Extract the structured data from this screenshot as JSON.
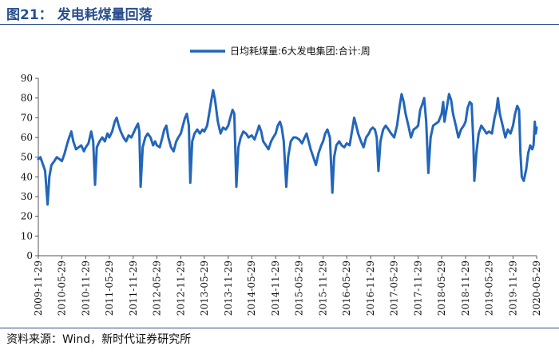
{
  "figure": {
    "title": "图21：  发电耗煤量回落",
    "source": "资料来源：Wind，新时代证券研究所"
  },
  "colors": {
    "series": "#2266bb",
    "axis": "#555555",
    "accent": "#2a4f8f"
  },
  "chart_data": {
    "type": "line",
    "title": "",
    "xlabel": "",
    "ylabel": "",
    "ylim": [
      0,
      90
    ],
    "yticks": [
      0,
      10,
      20,
      30,
      40,
      50,
      60,
      70,
      80,
      90
    ],
    "grid": false,
    "legend": "top-center",
    "xticks": [
      "2009-11-29",
      "2010-05-29",
      "2010-11-29",
      "2011-05-29",
      "2011-11-29",
      "2012-05-29",
      "2012-11-29",
      "2013-05-29",
      "2013-11-29",
      "2014-05-29",
      "2014-11-29",
      "2015-05-29",
      "2015-11-29",
      "2016-05-29",
      "2016-11-29",
      "2017-05-29",
      "2017-11-29",
      "2018-05-29",
      "2018-11-29",
      "2019-05-29",
      "2019-11-29",
      "2020-05-29"
    ],
    "series": [
      {
        "name": "日均耗煤量:6大发电集团:合计:周",
        "points": [
          [
            "2009-11-29",
            49
          ],
          [
            "2009-12-15",
            50
          ],
          [
            "2010-01-05",
            46
          ],
          [
            "2010-01-20",
            43
          ],
          [
            "2010-02-08",
            26
          ],
          [
            "2010-02-22",
            40
          ],
          [
            "2010-03-10",
            46
          ],
          [
            "2010-04-01",
            48
          ],
          [
            "2010-04-20",
            50
          ],
          [
            "2010-05-10",
            49
          ],
          [
            "2010-05-29",
            48
          ],
          [
            "2010-06-20",
            52
          ],
          [
            "2010-07-10",
            57
          ],
          [
            "2010-07-25",
            60
          ],
          [
            "2010-08-10",
            63
          ],
          [
            "2010-08-25",
            58
          ],
          [
            "2010-09-15",
            54
          ],
          [
            "2010-10-05",
            55
          ],
          [
            "2010-10-25",
            56
          ],
          [
            "2010-11-15",
            53
          ],
          [
            "2010-11-29",
            55
          ],
          [
            "2010-12-20",
            57
          ],
          [
            "2011-01-10",
            63
          ],
          [
            "2011-01-25",
            58
          ],
          [
            "2011-02-08",
            36
          ],
          [
            "2011-02-22",
            55
          ],
          [
            "2011-03-15",
            58
          ],
          [
            "2011-04-05",
            60
          ],
          [
            "2011-04-25",
            58
          ],
          [
            "2011-05-15",
            62
          ],
          [
            "2011-05-29",
            60
          ],
          [
            "2011-06-20",
            63
          ],
          [
            "2011-07-10",
            68
          ],
          [
            "2011-07-25",
            70
          ],
          [
            "2011-08-10",
            66
          ],
          [
            "2011-08-25",
            63
          ],
          [
            "2011-09-15",
            60
          ],
          [
            "2011-10-05",
            58
          ],
          [
            "2011-10-25",
            61
          ],
          [
            "2011-11-15",
            60
          ],
          [
            "2011-11-29",
            62
          ],
          [
            "2011-12-20",
            65
          ],
          [
            "2012-01-05",
            67
          ],
          [
            "2012-01-15",
            63
          ],
          [
            "2012-01-25",
            35
          ],
          [
            "2012-02-10",
            55
          ],
          [
            "2012-03-01",
            60
          ],
          [
            "2012-03-20",
            62
          ],
          [
            "2012-04-10",
            60
          ],
          [
            "2012-04-30",
            56
          ],
          [
            "2012-05-15",
            58
          ],
          [
            "2012-05-29",
            56
          ],
          [
            "2012-06-20",
            55
          ],
          [
            "2012-07-10",
            60
          ],
          [
            "2012-07-25",
            64
          ],
          [
            "2012-08-10",
            66
          ],
          [
            "2012-08-25",
            60
          ],
          [
            "2012-09-15",
            55
          ],
          [
            "2012-10-05",
            53
          ],
          [
            "2012-10-25",
            58
          ],
          [
            "2012-11-10",
            60
          ],
          [
            "2012-11-29",
            62
          ],
          [
            "2012-12-15",
            66
          ],
          [
            "2013-01-01",
            70
          ],
          [
            "2013-01-15",
            72
          ],
          [
            "2013-01-30",
            66
          ],
          [
            "2013-02-10",
            37
          ],
          [
            "2013-02-25",
            58
          ],
          [
            "2013-03-15",
            62
          ],
          [
            "2013-04-05",
            64
          ],
          [
            "2013-04-25",
            62
          ],
          [
            "2013-05-15",
            64
          ],
          [
            "2013-05-29",
            63
          ],
          [
            "2013-06-20",
            66
          ],
          [
            "2013-07-10",
            74
          ],
          [
            "2013-07-25",
            80
          ],
          [
            "2013-08-05",
            84
          ],
          [
            "2013-08-20",
            79
          ],
          [
            "2013-09-10",
            68
          ],
          [
            "2013-10-01",
            62
          ],
          [
            "2013-10-20",
            65
          ],
          [
            "2013-11-10",
            64
          ],
          [
            "2013-11-29",
            66
          ],
          [
            "2013-12-15",
            70
          ],
          [
            "2014-01-01",
            74
          ],
          [
            "2014-01-15",
            72
          ],
          [
            "2014-01-31",
            35
          ],
          [
            "2014-02-15",
            55
          ],
          [
            "2014-03-05",
            60
          ],
          [
            "2014-03-25",
            63
          ],
          [
            "2014-04-15",
            62
          ],
          [
            "2014-05-05",
            60
          ],
          [
            "2014-05-29",
            61
          ],
          [
            "2014-06-20",
            59
          ],
          [
            "2014-07-10",
            63
          ],
          [
            "2014-07-25",
            66
          ],
          [
            "2014-08-10",
            63
          ],
          [
            "2014-08-25",
            58
          ],
          [
            "2014-09-15",
            56
          ],
          [
            "2014-10-05",
            54
          ],
          [
            "2014-10-25",
            58
          ],
          [
            "2014-11-10",
            60
          ],
          [
            "2014-11-29",
            62
          ],
          [
            "2014-12-15",
            66
          ],
          [
            "2015-01-01",
            68
          ],
          [
            "2015-01-15",
            65
          ],
          [
            "2015-01-30",
            58
          ],
          [
            "2015-02-19",
            35
          ],
          [
            "2015-03-05",
            50
          ],
          [
            "2015-03-25",
            58
          ],
          [
            "2015-04-15",
            60
          ],
          [
            "2015-05-05",
            60
          ],
          [
            "2015-05-29",
            59
          ],
          [
            "2015-06-20",
            57
          ],
          [
            "2015-07-10",
            60
          ],
          [
            "2015-07-25",
            62
          ],
          [
            "2015-08-10",
            58
          ],
          [
            "2015-08-25",
            54
          ],
          [
            "2015-09-15",
            50
          ],
          [
            "2015-10-05",
            46
          ],
          [
            "2015-10-25",
            52
          ],
          [
            "2015-11-15",
            56
          ],
          [
            "2015-11-29",
            58
          ],
          [
            "2015-12-15",
            62
          ],
          [
            "2016-01-01",
            64
          ],
          [
            "2016-01-20",
            60
          ],
          [
            "2016-02-08",
            32
          ],
          [
            "2016-02-22",
            50
          ],
          [
            "2016-03-10",
            56
          ],
          [
            "2016-04-01",
            58
          ],
          [
            "2016-04-20",
            56
          ],
          [
            "2016-05-10",
            55
          ],
          [
            "2016-05-29",
            57
          ],
          [
            "2016-06-20",
            56
          ],
          [
            "2016-07-10",
            64
          ],
          [
            "2016-07-25",
            70
          ],
          [
            "2016-08-10",
            66
          ],
          [
            "2016-08-25",
            62
          ],
          [
            "2016-09-15",
            58
          ],
          [
            "2016-10-05",
            55
          ],
          [
            "2016-10-25",
            60
          ],
          [
            "2016-11-15",
            62
          ],
          [
            "2016-11-29",
            64
          ],
          [
            "2016-12-15",
            65
          ],
          [
            "2017-01-01",
            64
          ],
          [
            "2017-01-15",
            60
          ],
          [
            "2017-01-28",
            43
          ],
          [
            "2017-02-12",
            58
          ],
          [
            "2017-03-05",
            64
          ],
          [
            "2017-03-25",
            66
          ],
          [
            "2017-04-15",
            64
          ],
          [
            "2017-05-05",
            62
          ],
          [
            "2017-05-29",
            60
          ],
          [
            "2017-06-20",
            66
          ],
          [
            "2017-07-10",
            76
          ],
          [
            "2017-07-25",
            82
          ],
          [
            "2017-08-10",
            78
          ],
          [
            "2017-08-25",
            72
          ],
          [
            "2017-09-15",
            66
          ],
          [
            "2017-10-05",
            60
          ],
          [
            "2017-10-25",
            64
          ],
          [
            "2017-11-15",
            65
          ],
          [
            "2017-11-29",
            66
          ],
          [
            "2017-12-15",
            74
          ],
          [
            "2018-01-01",
            77
          ],
          [
            "2018-01-15",
            80
          ],
          [
            "2018-01-30",
            68
          ],
          [
            "2018-02-16",
            42
          ],
          [
            "2018-03-05",
            60
          ],
          [
            "2018-03-25",
            66
          ],
          [
            "2018-04-15",
            67
          ],
          [
            "2018-05-05",
            68
          ],
          [
            "2018-05-29",
            72
          ],
          [
            "2018-06-10",
            78
          ],
          [
            "2018-06-20",
            68
          ],
          [
            "2018-07-10",
            76
          ],
          [
            "2018-07-25",
            82
          ],
          [
            "2018-08-10",
            79
          ],
          [
            "2018-08-25",
            72
          ],
          [
            "2018-09-15",
            66
          ],
          [
            "2018-10-05",
            60
          ],
          [
            "2018-10-25",
            64
          ],
          [
            "2018-11-15",
            66
          ],
          [
            "2018-11-29",
            68
          ],
          [
            "2018-12-15",
            75
          ],
          [
            "2019-01-01",
            78
          ],
          [
            "2019-01-15",
            77
          ],
          [
            "2019-01-28",
            58
          ],
          [
            "2019-02-05",
            38
          ],
          [
            "2019-02-20",
            52
          ],
          [
            "2019-03-10",
            62
          ],
          [
            "2019-03-30",
            66
          ],
          [
            "2019-04-20",
            64
          ],
          [
            "2019-05-10",
            62
          ],
          [
            "2019-05-29",
            63
          ],
          [
            "2019-06-20",
            62
          ],
          [
            "2019-07-10",
            70
          ],
          [
            "2019-07-25",
            74
          ],
          [
            "2019-08-05",
            80
          ],
          [
            "2019-08-20",
            72
          ],
          [
            "2019-09-10",
            66
          ],
          [
            "2019-10-01",
            60
          ],
          [
            "2019-10-20",
            64
          ],
          [
            "2019-11-10",
            62
          ],
          [
            "2019-11-29",
            66
          ],
          [
            "2019-12-15",
            72
          ],
          [
            "2020-01-01",
            76
          ],
          [
            "2020-01-15",
            74
          ],
          [
            "2020-01-25",
            52
          ],
          [
            "2020-02-05",
            40
          ],
          [
            "2020-02-20",
            38
          ],
          [
            "2020-03-10",
            44
          ],
          [
            "2020-03-25",
            52
          ],
          [
            "2020-04-10",
            56
          ],
          [
            "2020-04-25",
            54
          ],
          [
            "2020-05-05",
            56
          ],
          [
            "2020-05-15",
            68
          ],
          [
            "2020-05-22",
            62
          ],
          [
            "2020-05-29",
            65
          ]
        ]
      }
    ]
  }
}
